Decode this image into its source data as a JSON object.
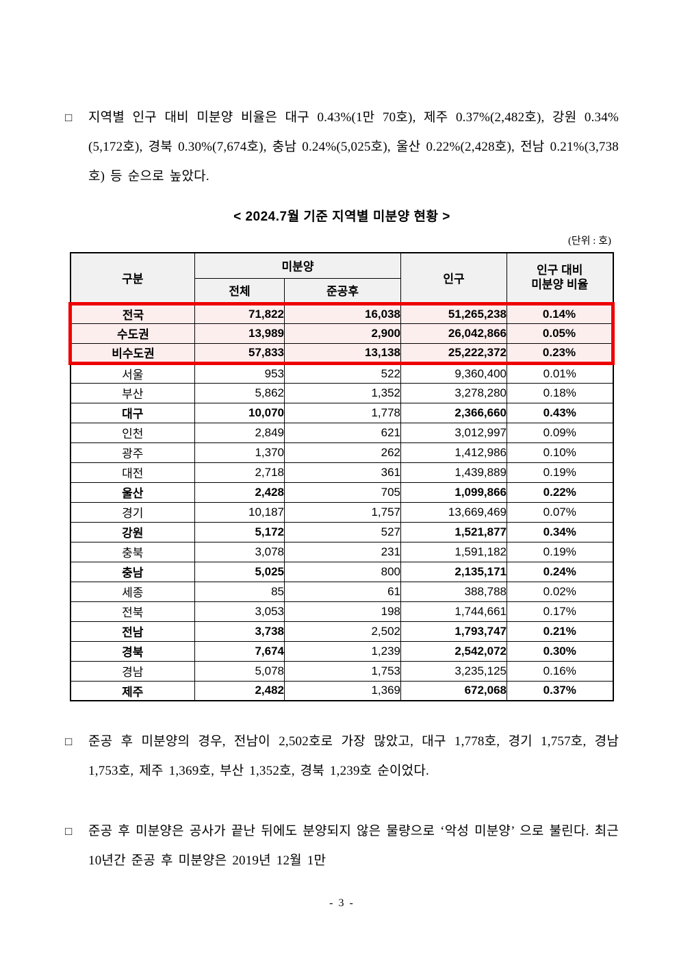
{
  "content": {
    "paragraphs": [
      {
        "bullet": "□",
        "text": "지역별 인구 대비 미분양 비율은 대구 0.43%(1만 70호), 제주 0.37%(2,482호), 강원 0.34%(5,172호), 경북 0.30%(7,674호), 충남 0.24%(5,025호), 울산 0.22%(2,428호), 전남 0.21%(3,738호) 등 순으로 높았다."
      },
      {
        "bullet": "□",
        "text": "준공 후 미분양의 경우, 전남이 2,502호로 가장 많았고, 대구 1,778호, 경기 1,757호, 경남 1,753호, 제주 1,369호, 부산 1,352호, 경북 1,239호 순이었다."
      },
      {
        "bullet": "□",
        "text": "준공 후 미분양은 공사가 끝난 뒤에도 분양되지 않은 물량으로 ‘악성 미분양’ 으로 불린다. 최근 10년간 준공 후 미분양은 2019년 12월 1만"
      }
    ],
    "page_number": "- 3 -"
  },
  "table": {
    "title": "< 2024.7월 기준 지역별 미분양 현황 >",
    "unit": "(단위 : 호)",
    "col_headers": {
      "group": "구분",
      "unsold": "미분양",
      "total": "전체",
      "after_completion": "준공후",
      "population": "인구",
      "ratio_line1": "인구 대비",
      "ratio_line2": "미분양 비율"
    },
    "summary_rows": [
      {
        "region": "전국",
        "total": "71,822",
        "completed": "16,038",
        "population": "51,265,238",
        "ratio": "0.14%"
      },
      {
        "region": "수도권",
        "total": "13,989",
        "completed": "2,900",
        "population": "26,042,866",
        "ratio": "0.05%"
      },
      {
        "region": "비수도권",
        "total": "57,833",
        "completed": "13,138",
        "population": "25,222,372",
        "ratio": "0.23%"
      }
    ],
    "rows": [
      {
        "region": "서울",
        "total": "953",
        "completed": "522",
        "population": "9,360,400",
        "ratio": "0.01%",
        "bold": false
      },
      {
        "region": "부산",
        "total": "5,862",
        "completed": "1,352",
        "population": "3,278,280",
        "ratio": "0.18%",
        "bold": false
      },
      {
        "region": "대구",
        "total": "10,070",
        "completed": "1,778",
        "population": "2,366,660",
        "ratio": "0.43%",
        "bold": true
      },
      {
        "region": "인천",
        "total": "2,849",
        "completed": "621",
        "population": "3,012,997",
        "ratio": "0.09%",
        "bold": false
      },
      {
        "region": "광주",
        "total": "1,370",
        "completed": "262",
        "population": "1,412,986",
        "ratio": "0.10%",
        "bold": false
      },
      {
        "region": "대전",
        "total": "2,718",
        "completed": "361",
        "population": "1,439,889",
        "ratio": "0.19%",
        "bold": false
      },
      {
        "region": "울산",
        "total": "2,428",
        "completed": "705",
        "population": "1,099,866",
        "ratio": "0.22%",
        "bold": true
      },
      {
        "region": "경기",
        "total": "10,187",
        "completed": "1,757",
        "population": "13,669,469",
        "ratio": "0.07%",
        "bold": false
      },
      {
        "region": "강원",
        "total": "5,172",
        "completed": "527",
        "population": "1,521,877",
        "ratio": "0.34%",
        "bold": true
      },
      {
        "region": "충북",
        "total": "3,078",
        "completed": "231",
        "population": "1,591,182",
        "ratio": "0.19%",
        "bold": false
      },
      {
        "region": "충남",
        "total": "5,025",
        "completed": "800",
        "population": "2,135,171",
        "ratio": "0.24%",
        "bold": true
      },
      {
        "region": "세종",
        "total": "85",
        "completed": "61",
        "population": "388,788",
        "ratio": "0.02%",
        "bold": false
      },
      {
        "region": "전북",
        "total": "3,053",
        "completed": "198",
        "population": "1,744,661",
        "ratio": "0.17%",
        "bold": false
      },
      {
        "region": "전남",
        "total": "3,738",
        "completed": "2,502",
        "population": "1,793,747",
        "ratio": "0.21%",
        "bold": true
      },
      {
        "region": "경북",
        "total": "7,674",
        "completed": "1,239",
        "population": "2,542,072",
        "ratio": "0.30%",
        "bold": true
      },
      {
        "region": "경남",
        "total": "5,078",
        "completed": "1,753",
        "population": "3,235,125",
        "ratio": "0.16%",
        "bold": false
      },
      {
        "region": "제주",
        "total": "2,482",
        "completed": "1,369",
        "population": "672,068",
        "ratio": "0.37%",
        "bold": true
      }
    ],
    "colors": {
      "highlight_border": "#ee0000",
      "highlight_background": "#fdeeee",
      "header_background": "#f1f1f1"
    }
  }
}
